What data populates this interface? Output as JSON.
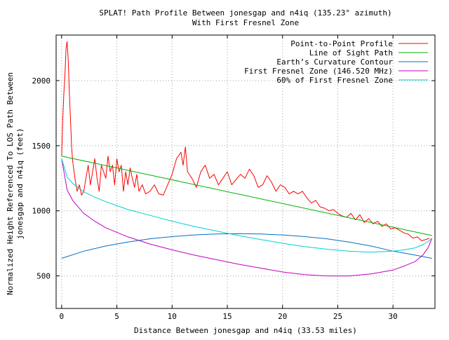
{
  "chart_data": {
    "type": "line",
    "title": "SPLAT! Path Profile Between jonesgap and n4iq (135.23° azimuth)",
    "subtitle": "With First Fresnel Zone",
    "xlabel": "Distance Between jonesgap and n4iq (33.53 miles)",
    "ylabel": [
      "Normalized Height Referenced To LOS Path Between",
      "jonesgap and n4iq (feet)"
    ],
    "xlim": [
      -0.5,
      33.8
    ],
    "ylim": [
      250,
      2350
    ],
    "x_ticks": [
      0,
      5,
      10,
      15,
      20,
      25,
      30
    ],
    "y_ticks": [
      500,
      1000,
      1500,
      2000
    ],
    "grid": true,
    "legend_position": "top-right",
    "series": [
      {
        "name": "Point-to-Point Profile",
        "color": "#ff0000",
        "x": [
          0.0,
          0.1,
          0.2,
          0.3,
          0.4,
          0.5,
          0.6,
          0.7,
          0.8,
          0.9,
          1.0,
          1.2,
          1.4,
          1.6,
          1.8,
          2.0,
          2.2,
          2.4,
          2.6,
          2.8,
          3.0,
          3.2,
          3.4,
          3.6,
          3.8,
          4.0,
          4.2,
          4.4,
          4.6,
          4.8,
          5.0,
          5.2,
          5.4,
          5.6,
          5.8,
          6.0,
          6.2,
          6.4,
          6.6,
          6.8,
          7.0,
          7.3,
          7.6,
          8.0,
          8.4,
          8.8,
          9.2,
          9.6,
          10.0,
          10.4,
          10.8,
          11.0,
          11.2,
          11.4,
          11.8,
          12.2,
          12.6,
          13.0,
          13.4,
          13.8,
          14.2,
          14.6,
          15.0,
          15.4,
          15.8,
          16.2,
          16.6,
          17.0,
          17.4,
          17.8,
          18.2,
          18.6,
          19.0,
          19.4,
          19.8,
          20.2,
          20.6,
          21.0,
          21.4,
          21.8,
          22.2,
          22.6,
          23.0,
          23.4,
          23.8,
          24.2,
          24.6,
          25.0,
          25.4,
          25.8,
          26.2,
          26.6,
          27.0,
          27.4,
          27.8,
          28.2,
          28.6,
          29.0,
          29.4,
          29.8,
          30.2,
          30.6,
          31.0,
          31.4,
          31.8,
          32.2,
          32.6,
          33.0,
          33.3
        ],
        "y": [
          1420,
          1700,
          1900,
          2050,
          2250,
          2300,
          2150,
          1900,
          1700,
          1500,
          1380,
          1250,
          1150,
          1200,
          1120,
          1150,
          1250,
          1350,
          1200,
          1300,
          1400,
          1250,
          1150,
          1350,
          1300,
          1250,
          1420,
          1300,
          1350,
          1200,
          1400,
          1300,
          1350,
          1150,
          1300,
          1200,
          1330,
          1250,
          1180,
          1280,
          1150,
          1200,
          1130,
          1150,
          1200,
          1130,
          1120,
          1200,
          1280,
          1400,
          1450,
          1350,
          1490,
          1300,
          1250,
          1180,
          1300,
          1350,
          1250,
          1280,
          1200,
          1250,
          1300,
          1200,
          1240,
          1280,
          1250,
          1320,
          1270,
          1180,
          1200,
          1270,
          1220,
          1150,
          1200,
          1180,
          1130,
          1150,
          1130,
          1150,
          1100,
          1060,
          1080,
          1030,
          1020,
          1000,
          1010,
          980,
          960,
          950,
          980,
          930,
          970,
          910,
          940,
          900,
          920,
          880,
          900,
          860,
          870,
          850,
          830,
          820,
          790,
          800,
          770,
          780,
          790
        ]
      },
      {
        "name": "Line of Sight Path",
        "color": "#00b000",
        "x": [
          0.0,
          33.53
        ],
        "y": [
          1420,
          810
        ]
      },
      {
        "name": "Earth’s Curvature Contour",
        "color": "#0070c8",
        "x": [
          0.0,
          2.0,
          4.0,
          6.0,
          8.0,
          10.0,
          12.0,
          14.0,
          16.0,
          18.0,
          20.0,
          22.0,
          24.0,
          26.0,
          28.0,
          30.0,
          32.0,
          33.53
        ],
        "y": [
          635,
          690,
          730,
          760,
          785,
          802,
          815,
          822,
          825,
          822,
          815,
          802,
          785,
          760,
          730,
          690,
          660,
          635
        ]
      },
      {
        "name": "First Fresnel Zone (146.520 MHz)",
        "color": "#c000c0",
        "x": [
          0.0,
          0.5,
          1.0,
          2.0,
          3.0,
          4.0,
          6.0,
          8.0,
          10.0,
          12.0,
          14.0,
          16.0,
          18.0,
          20.0,
          22.0,
          24.0,
          26.0,
          28.0,
          30.0,
          31.0,
          32.0,
          32.7,
          33.2,
          33.53
        ],
        "y": [
          1400,
          1160,
          1080,
          980,
          920,
          870,
          800,
          745,
          700,
          660,
          625,
          590,
          560,
          530,
          510,
          500,
          500,
          515,
          545,
          575,
          610,
          660,
          720,
          790
        ]
      },
      {
        "name": "60% of First Fresnel Zone",
        "color": "#00d0d0",
        "x": [
          0.0,
          0.5,
          1.0,
          2.0,
          3.0,
          4.0,
          6.0,
          8.0,
          10.0,
          12.0,
          14.0,
          16.0,
          18.0,
          20.0,
          22.0,
          24.0,
          26.0,
          28.0,
          30.0,
          31.0,
          32.0,
          32.7,
          33.2,
          33.53
        ],
        "y": [
          1400,
          1260,
          1210,
          1145,
          1105,
          1070,
          1010,
          965,
          920,
          880,
          845,
          810,
          780,
          750,
          725,
          705,
          690,
          682,
          690,
          700,
          715,
          740,
          765,
          790
        ]
      }
    ]
  }
}
